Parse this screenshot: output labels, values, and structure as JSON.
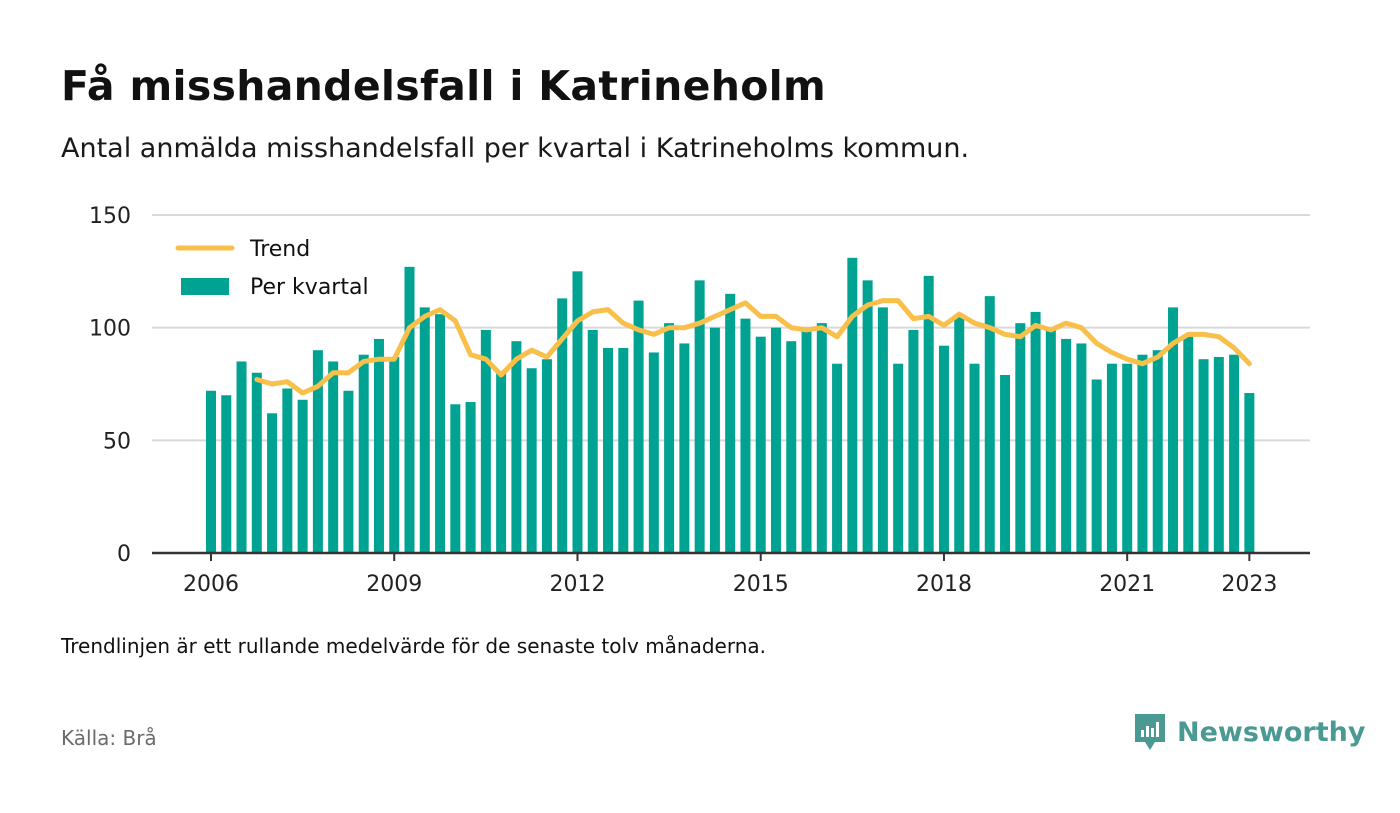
{
  "header": {
    "title": "Få misshandelsfall i Katrineholm",
    "subtitle": "Antal anmälda misshandelsfall per kvartal i Katrineholms kommun."
  },
  "footer": {
    "note": "Trendlinjen är ett rullande medelvärde för de senaste tolv månaderna.",
    "source": "Källa: Brå",
    "brand": "Newsworthy"
  },
  "colors": {
    "bar": "#00a392",
    "trend": "#f8c04a",
    "grid": "#d9d9d9",
    "axis": "#333333",
    "brand": "#4a9a93"
  },
  "chart_data": {
    "type": "bar",
    "start_year": 2006,
    "start_quarter": 1,
    "ylim": [
      0,
      150
    ],
    "yticks": [
      0,
      50,
      100,
      150
    ],
    "xticks": [
      "2006",
      "2009",
      "2012",
      "2015",
      "2018",
      "2021",
      "2023"
    ],
    "grid": true,
    "legend_position": "top-left",
    "series": [
      {
        "name": "Per kvartal",
        "type": "bar",
        "color": "#00a392",
        "values": [
          72,
          70,
          85,
          80,
          62,
          73,
          68,
          90,
          85,
          72,
          88,
          95,
          87,
          127,
          109,
          106,
          66,
          67,
          99,
          80,
          94,
          82,
          86,
          113,
          125,
          99,
          91,
          91,
          112,
          89,
          102,
          93,
          121,
          100,
          115,
          104,
          96,
          100,
          94,
          100,
          102,
          84,
          131,
          121,
          109,
          84,
          99,
          123,
          92,
          105,
          84,
          114,
          79,
          102,
          107,
          99,
          95,
          93,
          77,
          84,
          84,
          88,
          90,
          109,
          96,
          86,
          87,
          88,
          71
        ]
      },
      {
        "name": "Trend",
        "type": "line",
        "color": "#f8c04a",
        "start_index": 3,
        "values": [
          77,
          75,
          76,
          71,
          74,
          80,
          80,
          85,
          86,
          86,
          100,
          105,
          108,
          103,
          88,
          86,
          79,
          86,
          90,
          87,
          95,
          103,
          107,
          108,
          102,
          99,
          97,
          100,
          100,
          102,
          105,
          108,
          111,
          105,
          105,
          100,
          99,
          100,
          96,
          105,
          110,
          112,
          112,
          104,
          105,
          101,
          106,
          102,
          100,
          97,
          96,
          101,
          99,
          102,
          100,
          93,
          89,
          86,
          84,
          87,
          93,
          97,
          97,
          96,
          91,
          84
        ]
      }
    ]
  }
}
